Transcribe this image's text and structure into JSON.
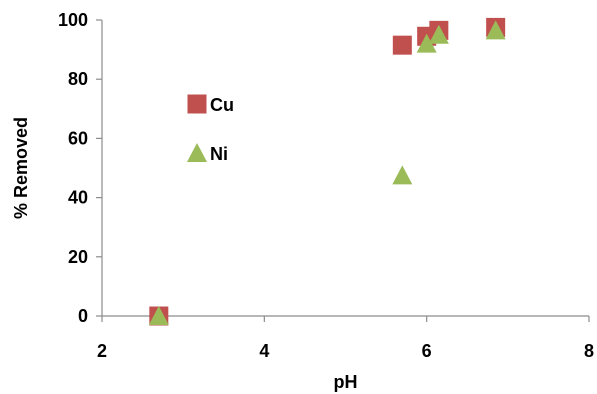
{
  "chart_data": {
    "type": "scatter",
    "title": "",
    "xlabel": "pH",
    "ylabel": "% Removed",
    "xlim": [
      2,
      8
    ],
    "ylim": [
      0,
      100
    ],
    "x_ticks": [
      2,
      4,
      6,
      8
    ],
    "y_ticks": [
      0,
      20,
      40,
      60,
      80,
      100
    ],
    "grid": false,
    "legend_position": "left, inside plot",
    "series": [
      {
        "name": "Cu",
        "marker": "square",
        "color": "#C0504D",
        "points": [
          [
            2.7,
            0
          ],
          [
            5.7,
            91.5
          ],
          [
            6.0,
            94.5
          ],
          [
            6.15,
            96.5
          ],
          [
            6.85,
            97.5
          ]
        ]
      },
      {
        "name": "Ni",
        "marker": "triangle",
        "color": "#9BBB59",
        "points": [
          [
            2.7,
            0
          ],
          [
            5.7,
            47.5
          ],
          [
            6.0,
            92
          ],
          [
            6.15,
            95
          ],
          [
            6.85,
            96.5
          ]
        ]
      }
    ]
  }
}
